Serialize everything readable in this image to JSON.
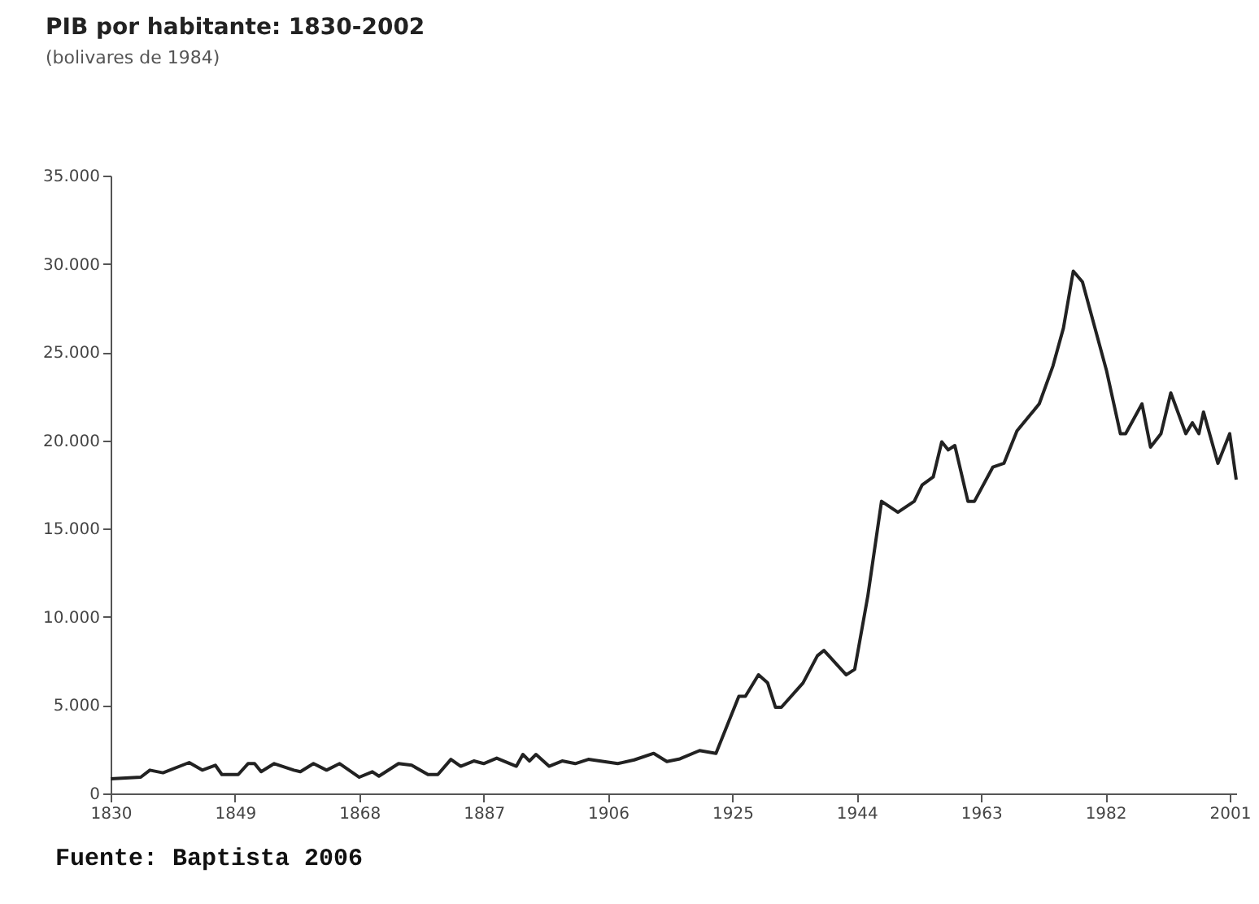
{
  "chart_data": {
    "type": "line",
    "title": "PIB por habitante: 1830-2002",
    "subtitle": "(bolivares de 1984)",
    "annotations": [
      "Fuente: Baptista 2006"
    ],
    "x": [
      1830,
      1834.6,
      1836,
      1838,
      1842,
      1844,
      1846,
      1847,
      1849.5,
      1851,
      1852,
      1853,
      1855,
      1858,
      1859,
      1861,
      1863,
      1865,
      1868,
      1870,
      1871,
      1874,
      1876,
      1878.5,
      1880,
      1882,
      1883.5,
      1885.5,
      1887,
      1889,
      1892,
      1893,
      1894,
      1895,
      1897,
      1899,
      1901,
      1903,
      1907.5,
      1910,
      1913,
      1915,
      1917,
      1920,
      1922.5,
      1926,
      1927,
      1929,
      1930.4,
      1931.6,
      1932.5,
      1935.8,
      1938,
      1939,
      1942.4,
      1943.7,
      1945.7,
      1947.8,
      1950.3,
      1952.8,
      1954,
      1955.7,
      1957,
      1958,
      1959,
      1961,
      1962,
      1964.8,
      1966.5,
      1968.5,
      1971.9,
      1974,
      1975.6,
      1977.1,
      1978.5,
      1982.2,
      1984.3,
      1985.1,
      1987.6,
      1988.9,
      1990.5,
      1992,
      1994.3,
      1995.3,
      1996.3,
      1997,
      1999.2,
      2001,
      2002
    ],
    "series": [
      {
        "color": "#222222",
        "values": [
          830,
          920,
          1320,
          1170,
          1750,
          1320,
          1600,
          1070,
          1070,
          1690,
          1690,
          1230,
          1690,
          1320,
          1230,
          1690,
          1320,
          1690,
          920,
          1230,
          980,
          1690,
          1600,
          1070,
          1070,
          1930,
          1540,
          1840,
          1690,
          2000,
          1540,
          2210,
          1840,
          2210,
          1540,
          1840,
          1690,
          1930,
          1690,
          1900,
          2270,
          1810,
          1960,
          2430,
          2270,
          5500,
          5500,
          6720,
          6260,
          4880,
          4880,
          6260,
          7800,
          8100,
          6720,
          7030,
          11170,
          16550,
          15930,
          16550,
          17470,
          17930,
          19920,
          19460,
          19710,
          16550,
          16550,
          18480,
          18700,
          20540,
          22070,
          24220,
          26370,
          29590,
          28980,
          23920,
          20380,
          20380,
          22070,
          19620,
          20380,
          22690,
          20380,
          21000,
          20380,
          21610,
          18700,
          20380,
          17780
        ]
      }
    ],
    "xlim": [
      1830,
      2002
    ],
    "xticks": [
      1830,
      1849,
      1868,
      1887,
      1906,
      1925,
      1944,
      1963,
      1982,
      2001
    ],
    "ylim": [
      0,
      35000
    ],
    "yticks": [
      0,
      {
        "value": 5000,
        "label": "5.000"
      },
      {
        "value": 10000,
        "label": "10.000"
      },
      {
        "value": 15000,
        "label": "15.000"
      },
      {
        "value": 20000,
        "label": "20.000"
      },
      {
        "value": 25000,
        "label": "25.000"
      },
      {
        "value": 30000,
        "label": "30.000"
      },
      {
        "value": 35000,
        "label": "35.000"
      }
    ],
    "grid": false,
    "marker": "none",
    "line_style": "solid"
  }
}
